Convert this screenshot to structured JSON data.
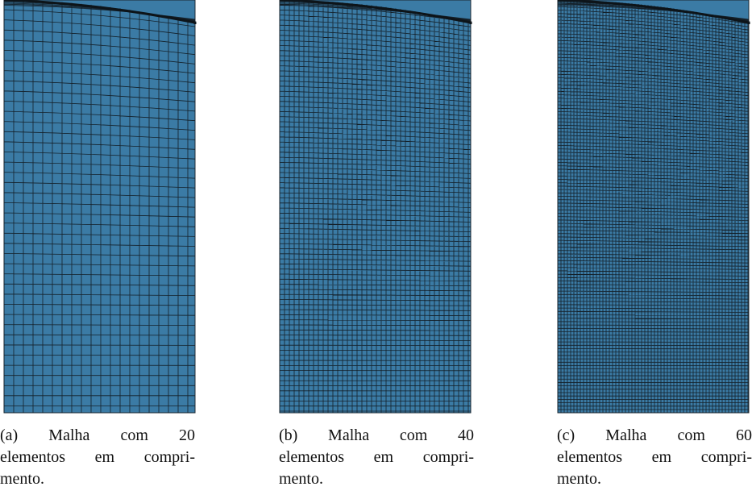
{
  "panels": [
    {
      "caption": {
        "lines": [
          "(a) Malha com 20",
          "elementos em compri-",
          "mento."
        ]
      }
    },
    {
      "caption": {
        "lines": [
          "(b) Malha com 40",
          "elementos em compri-",
          "mento."
        ]
      }
    },
    {
      "caption": {
        "lines": [
          "(c) Malha com 60",
          "elementos em compri-",
          "mento."
        ]
      }
    }
  ]
}
